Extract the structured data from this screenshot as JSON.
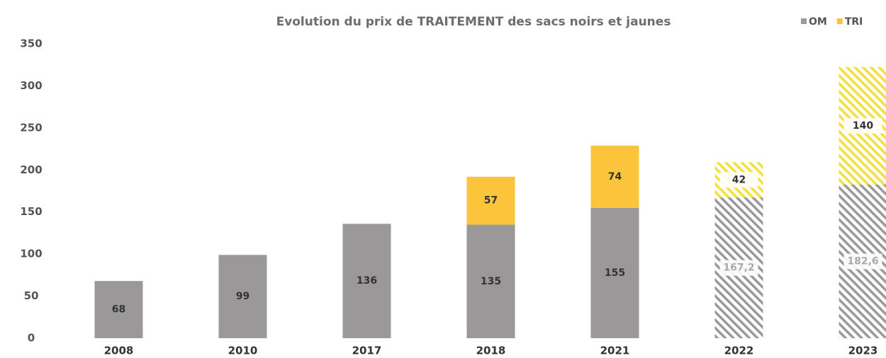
{
  "chart_data": {
    "type": "stacked_bar",
    "title": "Evolution du prix de TRAITEMENT des sacs noirs et jaunes",
    "categories": [
      "2008",
      "2010",
      "2017",
      "2018",
      "2021",
      "2022",
      "2023"
    ],
    "series": [
      {
        "name": "OM",
        "color": "#9a9899",
        "values": [
          68,
          99,
          136,
          135,
          155,
          167.2,
          182.6
        ],
        "value_labels": [
          "68",
          "99",
          "136",
          "135",
          "155",
          "167,2",
          "182,6"
        ]
      },
      {
        "name": "TRI",
        "color": "#fcc43a",
        "values": [
          null,
          null,
          null,
          57,
          74,
          42,
          140
        ]
      }
    ],
    "hatched": [
      false,
      false,
      false,
      false,
      false,
      true,
      true
    ],
    "ylim": [
      0,
      350
    ],
    "yticks": [
      0,
      50,
      100,
      150,
      200,
      250,
      300,
      350
    ],
    "grid": false,
    "legend": "top-right"
  }
}
